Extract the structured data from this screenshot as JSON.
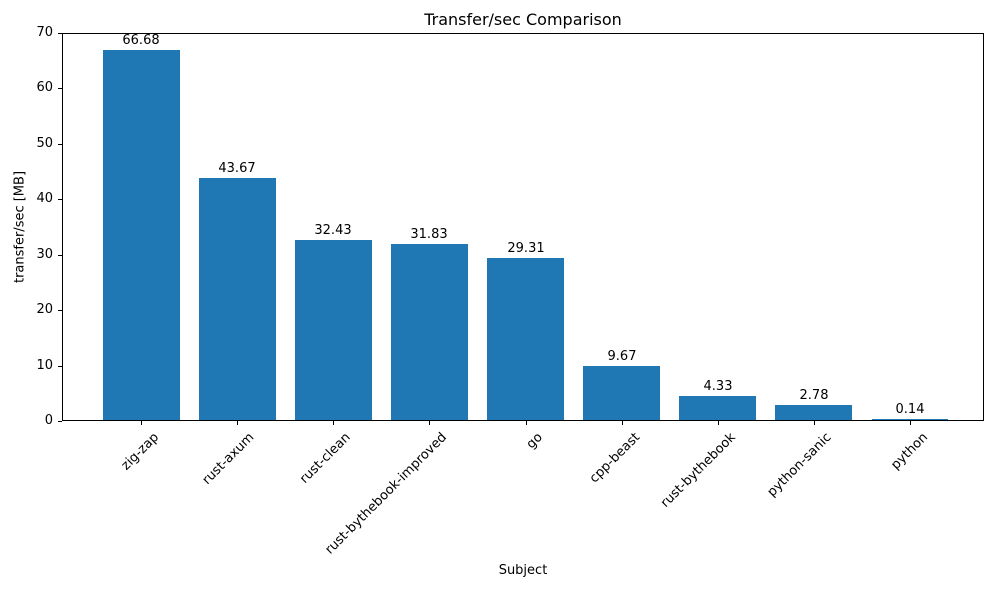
{
  "chart_data": {
    "type": "bar",
    "title": "Transfer/sec Comparison",
    "xlabel": "Subject",
    "ylabel": "transfer/sec [MB]",
    "categories": [
      "zig-zap",
      "rust-axum",
      "rust-clean",
      "rust-bythebook-improved",
      "go",
      "cpp-beast",
      "rust-bythebook",
      "python-sanic",
      "python"
    ],
    "values": [
      66.68,
      43.67,
      32.43,
      31.83,
      29.31,
      9.67,
      4.33,
      2.78,
      0.14
    ],
    "value_labels": [
      "66.68",
      "43.67",
      "32.43",
      "31.83",
      "29.31",
      "9.67",
      "4.33",
      "2.78",
      "0.14"
    ],
    "ylim": [
      0,
      70
    ],
    "yticks": [
      0,
      10,
      20,
      30,
      40,
      50,
      60,
      70
    ],
    "bar_color": "#1f77b4",
    "background_color": "#ffffff",
    "grid": false,
    "legend": null
  }
}
